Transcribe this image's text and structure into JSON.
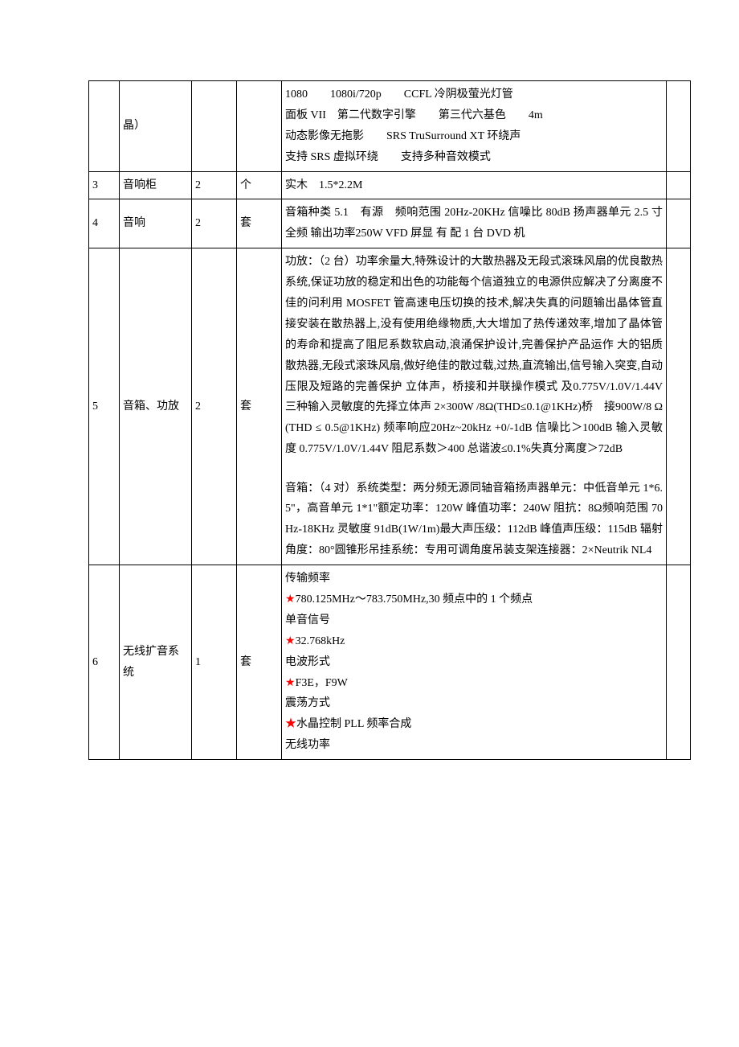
{
  "rows": [
    {
      "idx": "",
      "name": "晶）",
      "qty": "",
      "unit": "",
      "spec_lines": [
        "1080　　1080i/720p　　CCFL 冷阴极萤光灯管",
        "面板 VII　第二代数字引擎　　第三代六基色　　4m",
        "动态影像无拖影　　SRS TruSurround XT 环绕声",
        "支持 SRS 虚拟环绕　　支持多种音效模式"
      ],
      "last": ""
    },
    {
      "idx": "3",
      "name": "音响柜",
      "qty": "2",
      "unit": "个",
      "spec_lines": [
        "实木　1.5*2.2M"
      ],
      "last": ""
    },
    {
      "idx": "4",
      "name": "音响",
      "qty": "2",
      "unit": "套",
      "spec_lines": [
        "音箱种类 5.1　有源　频响范围 20Hz-20KHz 信噪比 80dB 扬声器单元 2.5 寸全频 输出功率250W VFD 屏显 有 配 1 台 DVD 机"
      ],
      "last": ""
    },
    {
      "idx": "5",
      "name": "音箱、功放",
      "qty": "2",
      "unit": "套",
      "spec_paras": [
        "功放：（2 台）功率余量大,特殊设计的大散热器及无段式滚珠风扇的优良散热系统,保证功放的稳定和出色的功能每个信道独立的电源供应解决了分离度不佳的问利用 MOSFET 管高速电压切换的技术,解决失真的问题输出晶体管直接安装在散热器上,没有使用绝缘物质,大大增加了热传递效率,增加了晶体管的寿命和提高了阻尼系数软启动,浪涌保护设计,完善保护产品运作 大的铝质散热器,无段式滚珠风扇,做好绝佳的散过载,过热,直流输出,信号输入突变,自动压限及短路的完善保护 立体声，桥接和并联操作模式 及0.775V/1.0V/1.44V 三种输入灵敏度的先择立体声 2×300W /8Ω(THD≤0.1@1KHz)桥　接900W/8 Ω (THD ≤ 0.5@1KHz) 频率响应20Hz~20kHz +0/-1dB 信噪比＞100dB 输入灵敏度 0.775V/1.0V/1.44V 阻尼系数＞400 总谐波≤0.1%失真分离度＞72dB",
        "音箱：（4 对）系统类型：两分频无源同轴音箱扬声器单元：中低音单元 1*6.5\"，高音单元 1*1\"额定功率：120W 峰值功率：240W 阻抗：8Ω频响范围 70Hz-18KHz 灵敏度 91dB(1W/1m)最大声压级：112dB 峰值声压级：115dB 辐射角度：80°圆锥形吊挂系统：专用可调角度吊装支架连接器：2×Neutrik NL4"
      ],
      "last": ""
    },
    {
      "idx": "6",
      "name": "无线扩音系统",
      "qty": "1",
      "unit": "套",
      "spec_starlines": [
        {
          "t": "传输频率",
          "star": false
        },
        {
          "t": "780.125MHz～783.750MHz,30 频点中的 1 个频点",
          "star": true
        },
        {
          "t": "单音信号",
          "star": false
        },
        {
          "t": "32.768kHz",
          "star": true
        },
        {
          "t": "电波形式",
          "star": false
        },
        {
          "t": "F3E，F9W",
          "star": true
        },
        {
          "t": "震荡方式",
          "star": false
        },
        {
          "t": "水晶控制 PLL 频率合成",
          "star": true
        },
        {
          "t": "无线功率",
          "star": false
        }
      ],
      "last": ""
    }
  ],
  "star_char": "★"
}
